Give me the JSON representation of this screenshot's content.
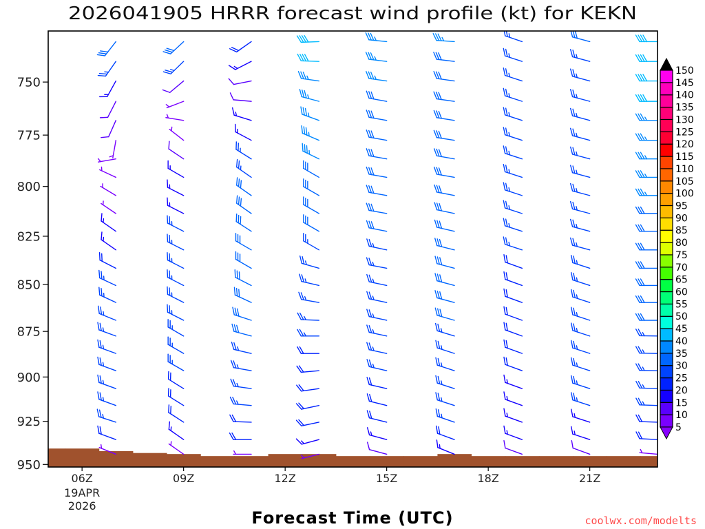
{
  "chart_data": {
    "type": "scatter",
    "mark": "wind-barb",
    "title": "2026041905 HRRR forecast wind profile (kt) for KEKN",
    "xlabel": "Forecast Time (UTC)",
    "ylabel": "",
    "units": "kt",
    "yscale": "log",
    "ylim": [
      951.5,
      726.7
    ],
    "xlim_hours": [
      5,
      23
    ],
    "grid": false,
    "x_ticks": [
      {
        "hour": 6,
        "label": "06Z",
        "sub": [
          "19APR",
          "2026"
        ]
      },
      {
        "hour": 9,
        "label": "09Z",
        "sub": []
      },
      {
        "hour": 12,
        "label": "12Z",
        "sub": []
      },
      {
        "hour": 15,
        "label": "15Z",
        "sub": []
      },
      {
        "hour": 18,
        "label": "18Z",
        "sub": []
      },
      {
        "hour": 21,
        "label": "21Z",
        "sub": []
      }
    ],
    "y_ticks": [
      750,
      775,
      800,
      825,
      850,
      875,
      900,
      925,
      950
    ],
    "y_tick_labels": [
      "750",
      "775",
      "800",
      "825",
      "850",
      "875",
      "900",
      "925",
      "950"
    ],
    "levels_hpa": [
      731.5,
      740.5,
      749.5,
      759,
      768,
      777.5,
      786.5,
      795.5,
      804.5,
      813.5,
      822.5,
      832,
      841.5,
      850.5,
      859.5,
      869,
      877.5,
      887,
      896.5,
      906.5,
      916,
      925.5,
      935.5,
      944
    ],
    "series": [
      {
        "time": "07Z",
        "hour": 7,
        "direction_deg": [
          218,
          215,
          209,
          207,
          204,
          190,
          260,
          295,
          301,
          304,
          305,
          305,
          297,
          295,
          295,
          292,
          290,
          290,
          290,
          290,
          290,
          288,
          290,
          292
        ],
        "speed_kt": [
          30,
          25,
          15,
          10,
          10,
          5,
          5,
          5,
          5,
          5,
          15,
          15,
          20,
          25,
          25,
          25,
          25,
          25,
          25,
          25,
          25,
          25,
          20,
          5
        ]
      },
      {
        "time": "09Z",
        "hour": 9,
        "direction_deg": [
          227,
          226,
          230,
          249,
          279,
          308,
          304,
          300,
          297,
          297,
          297,
          297,
          297,
          297,
          297,
          297,
          300,
          300,
          300,
          302,
          302,
          303,
          305,
          305
        ],
        "speed_kt": [
          30,
          25,
          10,
          5,
          5,
          5,
          10,
          15,
          15,
          15,
          25,
          25,
          25,
          25,
          25,
          25,
          25,
          25,
          25,
          20,
          20,
          20,
          15,
          5
        ]
      },
      {
        "time": "11Z",
        "hour": 11,
        "direction_deg": [
          235,
          243,
          259,
          275,
          287,
          298,
          302,
          305,
          305,
          305,
          303,
          300,
          300,
          297,
          295,
          288,
          285,
          283,
          280,
          278,
          275,
          272,
          270,
          270
        ],
        "speed_kt": [
          20,
          15,
          10,
          10,
          15,
          15,
          25,
          25,
          30,
          30,
          30,
          30,
          30,
          30,
          30,
          30,
          30,
          25,
          25,
          25,
          25,
          20,
          20,
          5
        ]
      },
      {
        "time": "13Z",
        "hour": 13,
        "direction_deg": [
          268,
          272,
          278,
          285,
          290,
          293,
          296,
          300,
          300,
          300,
          300,
          300,
          286,
          283,
          280,
          272,
          270,
          270,
          265,
          262,
          258,
          258,
          255,
          256
        ],
        "speed_kt": [
          40,
          40,
          35,
          35,
          35,
          35,
          35,
          30,
          30,
          30,
          30,
          25,
          25,
          25,
          25,
          25,
          25,
          20,
          20,
          20,
          20,
          20,
          15,
          5
        ]
      },
      {
        "time": "15Z",
        "hour": 15,
        "direction_deg": [
          276,
          277,
          278,
          280,
          280,
          280,
          280,
          280,
          280,
          280,
          281,
          282,
          281,
          282,
          282,
          282,
          282,
          282,
          283,
          283,
          284,
          284,
          285,
          285
        ],
        "speed_kt": [
          35,
          35,
          35,
          30,
          30,
          30,
          30,
          30,
          30,
          30,
          30,
          25,
          25,
          25,
          25,
          25,
          25,
          25,
          25,
          20,
          20,
          20,
          15,
          10
        ]
      },
      {
        "time": "17Z",
        "hour": 17,
        "direction_deg": [
          274,
          277,
          278,
          278,
          279,
          279,
          280,
          280,
          281,
          282,
          283,
          284,
          285,
          285,
          285,
          286,
          287,
          288,
          288,
          288,
          288,
          289,
          290,
          292
        ],
        "speed_kt": [
          35,
          30,
          30,
          30,
          30,
          30,
          30,
          30,
          30,
          30,
          30,
          30,
          30,
          30,
          30,
          30,
          25,
          25,
          25,
          25,
          25,
          25,
          20,
          15
        ]
      },
      {
        "time": "19Z",
        "hour": 19,
        "direction_deg": [
          289,
          288,
          288,
          288,
          288,
          288,
          288,
          288,
          288,
          288,
          288,
          288,
          290,
          290,
          290,
          290,
          290,
          290,
          290,
          290,
          290,
          290,
          290,
          290
        ],
        "speed_kt": [
          25,
          25,
          25,
          25,
          25,
          25,
          25,
          25,
          25,
          25,
          25,
          25,
          20,
          20,
          20,
          20,
          20,
          20,
          20,
          15,
          15,
          15,
          15,
          10
        ]
      },
      {
        "time": "21Z",
        "hour": 21,
        "direction_deg": [
          285,
          285,
          285,
          285,
          285,
          285,
          285,
          285,
          285,
          285,
          285,
          285,
          288,
          288,
          288,
          288,
          288,
          288,
          288,
          288,
          288,
          288,
          288,
          290
        ],
        "speed_kt": [
          30,
          25,
          25,
          25,
          25,
          25,
          25,
          25,
          25,
          25,
          25,
          25,
          25,
          25,
          25,
          25,
          25,
          25,
          25,
          25,
          25,
          15,
          15,
          10
        ]
      },
      {
        "time": "23Z",
        "hour": 23,
        "direction_deg": [
          270,
          270,
          270,
          270,
          270,
          270,
          270,
          270,
          270,
          270,
          270,
          270,
          270,
          270,
          270,
          270,
          271,
          271,
          271,
          272,
          272,
          272,
          273,
          275
        ],
        "speed_kt": [
          40,
          40,
          40,
          40,
          35,
          35,
          35,
          35,
          35,
          30,
          30,
          30,
          30,
          30,
          30,
          30,
          25,
          25,
          25,
          25,
          25,
          20,
          20,
          5
        ]
      }
    ],
    "terrain": {
      "hours": [
        5,
        6,
        7,
        8,
        9,
        10,
        11,
        12,
        13,
        14,
        15,
        16,
        17,
        18,
        19,
        20,
        21,
        22,
        23
      ],
      "surface_pressure_hpa": [
        940.7,
        940.7,
        942.2,
        943.3,
        943.9,
        945.1,
        945.1,
        943.9,
        943.9,
        945.1,
        945.1,
        945.1,
        943.9,
        945.1,
        945.1,
        945.1,
        945.1,
        945.1,
        945.1
      ],
      "color": "#a0522d"
    },
    "colorbar": {
      "labels": [
        "5",
        "10",
        "15",
        "20",
        "25",
        "30",
        "35",
        "40",
        "45",
        "50",
        "55",
        "60",
        "65",
        "70",
        "75",
        "80",
        "85",
        "90",
        "95",
        "100",
        "105",
        "110",
        "115",
        "120",
        "125",
        "130",
        "135",
        "140",
        "145",
        "150"
      ],
      "colors": [
        "#7a00ff",
        "#5a00ff",
        "#1400ff",
        "#0022ff",
        "#0044ff",
        "#0066ff",
        "#0088ff",
        "#00bbff",
        "#00ffdd",
        "#00ffaa",
        "#00ff77",
        "#00ff44",
        "#44ff00",
        "#88ff00",
        "#ddff00",
        "#ffff00",
        "#ffdd00",
        "#ffbb00",
        "#ffa000",
        "#ff8800",
        "#ff6600",
        "#ff4400",
        "#ff0000",
        "#ff0033",
        "#ff0055",
        "#ff0077",
        "#ff0099",
        "#ff00bb",
        "#ff00ee"
      ],
      "under_color": "#8800ff",
      "over_color": "#000000"
    }
  },
  "watermark": "coolwx.com/modelts"
}
